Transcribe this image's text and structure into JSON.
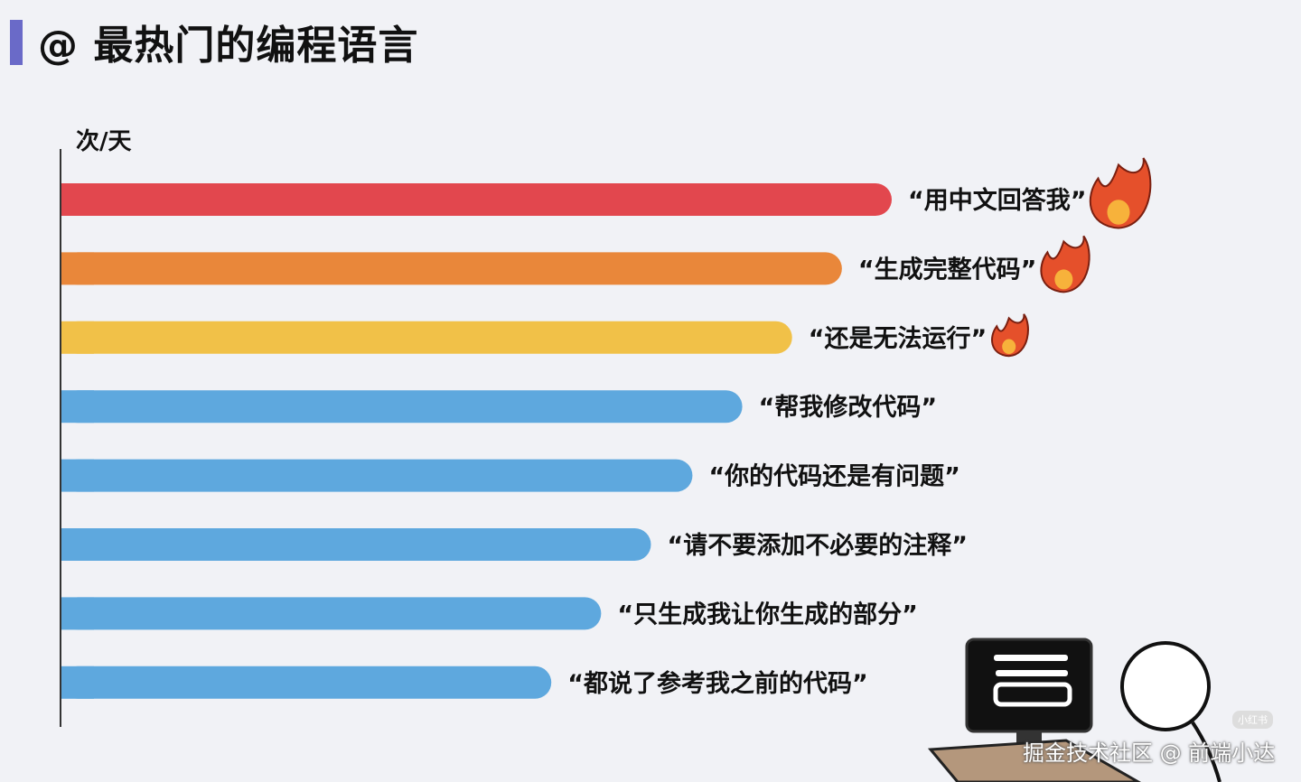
{
  "chart_data": {
    "type": "bar",
    "orientation": "horizontal",
    "title": "@ 最热门的编程语言",
    "ylabel": "次/天",
    "categories": [
      "“用中文回答我”",
      "“生成完整代码”",
      "“还是无法运行”",
      "“帮我修改代码”",
      "“你的代码还是有问题”",
      "“请不要添加不必要的注释”",
      "“只生成我让你生成的部分”",
      "“都说了参考我之前的代码”"
    ],
    "values": [
      100,
      94,
      88,
      82,
      76,
      71,
      65,
      59
    ],
    "colors": [
      "#e2474e",
      "#e9873a",
      "#f1c148",
      "#5ea8de",
      "#5ea8de",
      "#5ea8de",
      "#5ea8de",
      "#5ea8de"
    ],
    "fire_icons": [
      3,
      2,
      1,
      0,
      0,
      0,
      0,
      0
    ],
    "grid": false,
    "xlim": [
      0,
      100
    ]
  },
  "footer": {
    "credit": "掘金技术社区 @ 前端小达",
    "badge": "小红书"
  },
  "illustration": "person-at-computer"
}
